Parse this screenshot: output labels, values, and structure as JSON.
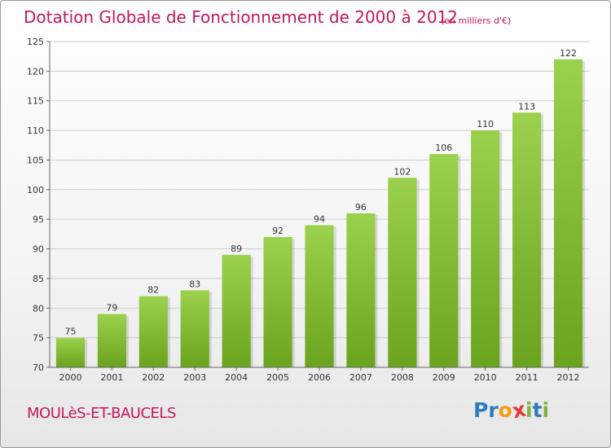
{
  "header": {
    "title": "Dotation Globale de Fonctionnement de 2000 à 2012",
    "unit": "(en milliers d'€)"
  },
  "footer": {
    "commune": "MOULèS-ET-BAUCELS",
    "logo": {
      "letters": [
        "P",
        "r",
        "o",
        "x",
        "i",
        "t",
        "i"
      ],
      "colors": [
        "#2e7dbd",
        "#2e7dbd",
        "#f39c12",
        "#e53935",
        "#7cb342",
        "#2e7dbd",
        "#7cb342"
      ]
    }
  },
  "colors": {
    "bar_top": "#9bd14d",
    "bar_bottom": "#6aa31e",
    "grid": "#cccccc",
    "axis": "#666666"
  },
  "chart_data": {
    "type": "bar",
    "title": "Dotation Globale de Fonctionnement de 2000 à 2012",
    "subtitle": "(en milliers d'€)",
    "categories": [
      "2000",
      "2001",
      "2002",
      "2003",
      "2004",
      "2005",
      "2006",
      "2007",
      "2008",
      "2009",
      "2010",
      "2011",
      "2012"
    ],
    "values": [
      75,
      79,
      82,
      83,
      89,
      92,
      94,
      96,
      102,
      106,
      110,
      113,
      122
    ],
    "ylim": [
      70,
      125
    ],
    "yticks": [
      70,
      75,
      80,
      85,
      90,
      95,
      100,
      105,
      110,
      115,
      120,
      125
    ],
    "grid": true,
    "xlabel": "",
    "ylabel": ""
  }
}
